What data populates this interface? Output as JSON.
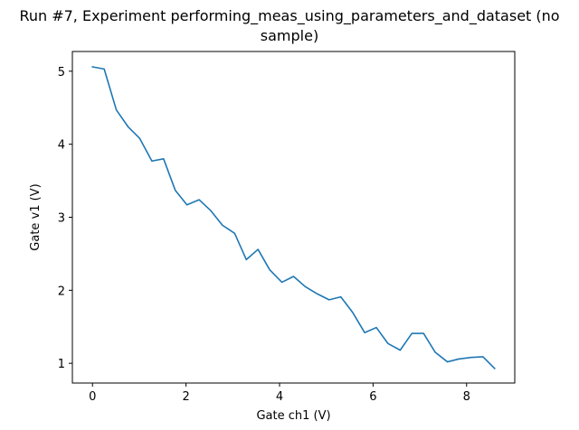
{
  "chart_data": {
    "type": "line",
    "title_lines": [
      "Run #7, Experiment performing_meas_using_parameters_and_dataset (no",
      "sample)"
    ],
    "xlabel": "Gate ch1 (V)",
    "ylabel": "Gate v1 (V)",
    "xlim": [
      -0.43,
      9.03
    ],
    "ylim": [
      0.73,
      5.27
    ],
    "xticks": [
      0,
      2,
      4,
      6,
      8
    ],
    "yticks": [
      1,
      2,
      3,
      4,
      5
    ],
    "grid": false,
    "line_color": "#1f77b4",
    "series": [
      {
        "x": [
          0.0,
          0.25,
          0.51,
          0.76,
          1.01,
          1.27,
          1.52,
          1.77,
          2.02,
          2.28,
          2.53,
          2.78,
          3.04,
          3.29,
          3.54,
          3.79,
          4.05,
          4.3,
          4.55,
          4.81,
          5.06,
          5.31,
          5.56,
          5.82,
          6.07,
          6.32,
          6.58,
          6.83,
          7.08,
          7.33,
          7.59,
          7.84,
          8.09,
          8.35,
          8.6
        ],
        "y": [
          5.06,
          5.03,
          4.47,
          4.24,
          4.08,
          3.77,
          3.8,
          3.37,
          3.17,
          3.24,
          3.09,
          2.89,
          2.78,
          2.42,
          2.56,
          2.28,
          2.11,
          2.19,
          2.05,
          1.95,
          1.87,
          1.91,
          1.7,
          1.42,
          1.49,
          1.27,
          1.18,
          1.41,
          1.41,
          1.15,
          1.02,
          1.06,
          1.08,
          1.09,
          0.93
        ]
      }
    ]
  }
}
